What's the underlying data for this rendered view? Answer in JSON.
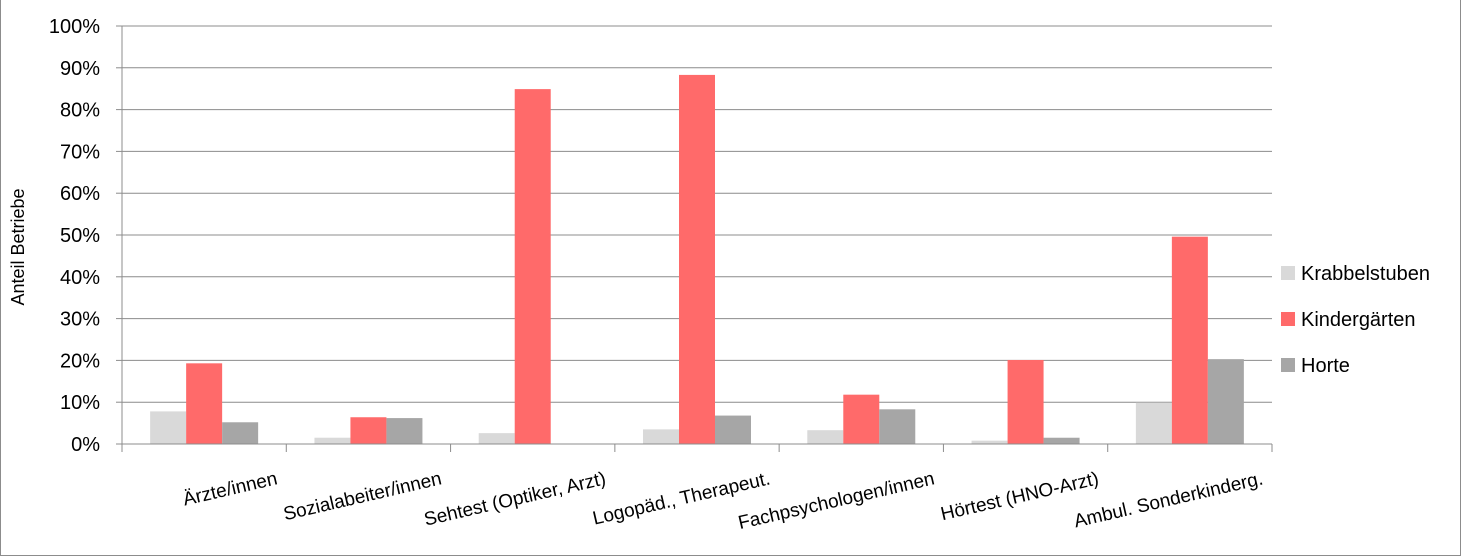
{
  "chart_data": {
    "type": "bar",
    "title": "",
    "xlabel": "",
    "ylabel": "Anteil Betriebe",
    "ylim": [
      0,
      100
    ],
    "yticks": [
      "0%",
      "10%",
      "20%",
      "30%",
      "40%",
      "50%",
      "60%",
      "70%",
      "80%",
      "90%",
      "100%"
    ],
    "grid": true,
    "legend_position": "right",
    "categories": [
      "Ärzte/innen",
      "Sozialabeiter/innen",
      "Sehtest (Optiker, Arzt)",
      "Logopäd., Therapeut.",
      "Fachpsychologen/innen",
      "Hörtest (HNO-Arzt)",
      "Ambul. Sonderkinderg."
    ],
    "series": [
      {
        "name": "Krabbelstuben",
        "color": "#d9d9d9",
        "values": [
          7.8,
          1.5,
          2.6,
          3.5,
          3.3,
          0.8,
          9.9
        ]
      },
      {
        "name": "Kindergärten",
        "color": "#ff6a6a",
        "values": [
          19.3,
          6.4,
          84.9,
          88.3,
          11.8,
          20.1,
          49.6
        ]
      },
      {
        "name": "Horte",
        "color": "#a6a6a6",
        "values": [
          5.2,
          6.2,
          0,
          6.8,
          8.3,
          1.5,
          20.3
        ]
      }
    ]
  }
}
